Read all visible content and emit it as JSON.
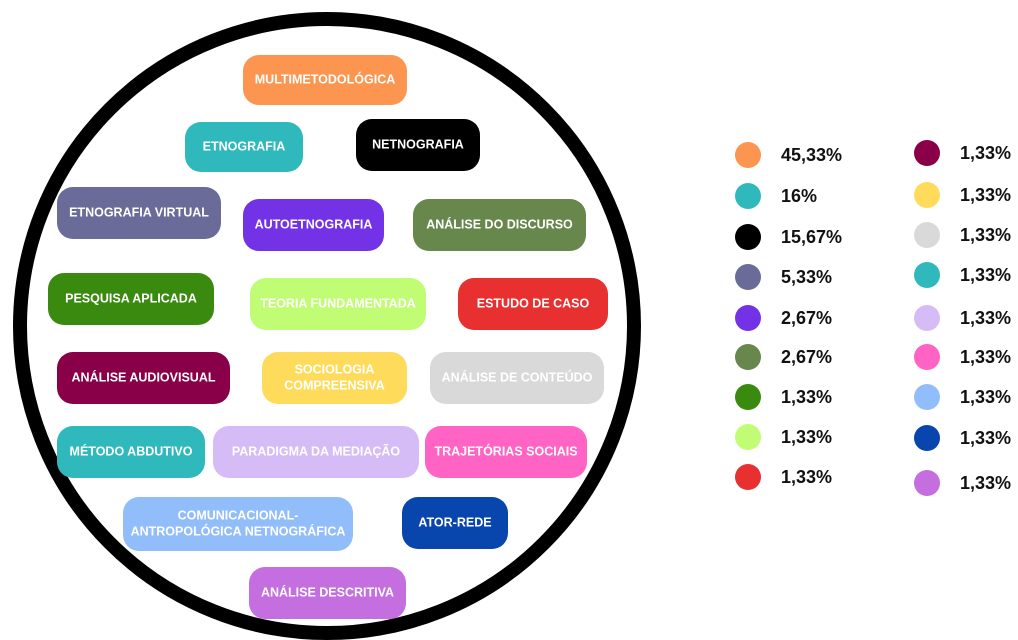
{
  "items": [
    {
      "label_lines": [
        "MULTIMETODOLÓGICA"
      ],
      "color": "#fb9550",
      "percent": "45,33%"
    },
    {
      "label_lines": [
        "ETNOGRAFIA"
      ],
      "color": "#2fb9bd",
      "percent": "16%"
    },
    {
      "label_lines": [
        "NETNOGRAFIA"
      ],
      "color": "#000000",
      "percent": "15,67%"
    },
    {
      "label_lines": [
        "ETNOGRAFIA VIRTUAL"
      ],
      "color": "#6b6b99",
      "percent": "5,33%"
    },
    {
      "label_lines": [
        "AUTOETNOGRAFIA"
      ],
      "color": "#7432e6",
      "percent": "2,67%"
    },
    {
      "label_lines": [
        "ANÁLISE DO DISCURSO"
      ],
      "color": "#67874d",
      "percent": "2,67%"
    },
    {
      "label_lines": [
        "PESQUISA APLICADA"
      ],
      "color": "#3a8a0f",
      "percent": "1,33%"
    },
    {
      "label_lines": [
        "TEORIA FUNDAMENTADA"
      ],
      "color": "#c1fd74",
      "percent": "1,33%"
    },
    {
      "label_lines": [
        "ESTUDO DE CASO"
      ],
      "color": "#e93030",
      "percent": "1,33%"
    },
    {
      "label_lines": [
        "ANÁLISE AUDIOVISUAL"
      ],
      "color": "#8a0048",
      "percent": "1,33%"
    },
    {
      "label_lines": [
        "SOCIOLOGIA",
        "COMPREENSIVA"
      ],
      "color": "#ffdb5c",
      "percent": "1,33%"
    },
    {
      "label_lines": [
        "ANÁLISE DE CONTEÚDO"
      ],
      "color": "#d9d9d9",
      "percent": "1,33%"
    },
    {
      "label_lines": [
        "MÉTODO ABDUTIVO"
      ],
      "color": "#2fb9bd",
      "percent": "1,33%"
    },
    {
      "label_lines": [
        "PARADIGMA DA MEDIAÇÃO"
      ],
      "color": "#d6bcf7",
      "percent": "1,33%"
    },
    {
      "label_lines": [
        "TRAJETÓRIAS SOCIAIS"
      ],
      "color": "#ff63c3",
      "percent": "1,33%"
    },
    {
      "label_lines": [
        "COMUNICACIONAL-",
        "ANTROPOLÓGICA NETNOGRÁFICA"
      ],
      "color": "#92bdfb",
      "percent": "1,33%"
    },
    {
      "label_lines": [
        "ATOR-REDE"
      ],
      "color": "#0845ad",
      "percent": "1,33%"
    },
    {
      "label_lines": [
        "ANÁLISE DESCRITIVA"
      ],
      "color": "#c46ee0",
      "percent": "1,33%"
    }
  ]
}
